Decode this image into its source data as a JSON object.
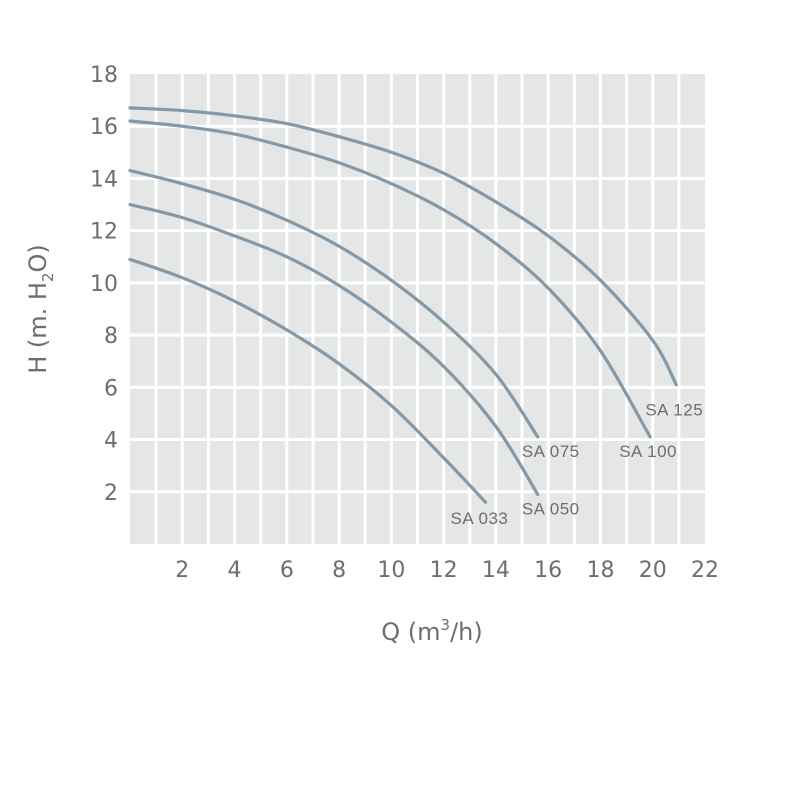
{
  "chart_data": {
    "type": "line",
    "xlabel": {
      "prefix": "Q (m",
      "sup": "3",
      "suffix": "/h)"
    },
    "ylabel": {
      "prefix": "H (m. H",
      "sub": "2",
      "suffix": "O)"
    },
    "xlim": [
      0,
      22
    ],
    "ylim": [
      0,
      18
    ],
    "xticks": [
      "2",
      "4",
      "6",
      "8",
      "10",
      "12",
      "14",
      "16",
      "18",
      "20",
      "22"
    ],
    "yticks": [
      "2",
      "4",
      "6",
      "8",
      "10",
      "12",
      "14",
      "16",
      "18"
    ],
    "grid": true,
    "colors": {
      "plot_bg": "#e5e6e6",
      "grid": "#ffffff",
      "curve": "#8499a8",
      "text": "#6d6e70"
    },
    "series": [
      {
        "name": "SA 033",
        "x": [
          0,
          2,
          4,
          6,
          8,
          10,
          12,
          13.6
        ],
        "y": [
          10.9,
          10.2,
          9.3,
          8.2,
          6.9,
          5.3,
          3.3,
          1.6
        ]
      },
      {
        "name": "SA 050",
        "x": [
          0,
          2,
          4,
          6,
          8,
          10,
          12,
          14,
          15.6
        ],
        "y": [
          13.0,
          12.5,
          11.8,
          11.0,
          9.9,
          8.5,
          6.8,
          4.5,
          1.9
        ]
      },
      {
        "name": "SA 075",
        "x": [
          0,
          2,
          4,
          6,
          8,
          10,
          12,
          14,
          15.6
        ],
        "y": [
          14.3,
          13.8,
          13.2,
          12.4,
          11.4,
          10.1,
          8.5,
          6.5,
          4.1
        ]
      },
      {
        "name": "SA 100",
        "x": [
          0,
          2,
          4,
          6,
          8,
          10,
          12,
          14,
          16,
          18,
          19.9
        ],
        "y": [
          16.2,
          16.0,
          15.7,
          15.2,
          14.6,
          13.8,
          12.8,
          11.5,
          9.8,
          7.4,
          4.1
        ]
      },
      {
        "name": "SA 125",
        "x": [
          0,
          2,
          4,
          6,
          8,
          10,
          12,
          14,
          16,
          18,
          20,
          20.9
        ],
        "y": [
          16.7,
          16.6,
          16.4,
          16.1,
          15.6,
          15.0,
          14.2,
          13.1,
          11.8,
          10.1,
          7.8,
          6.1
        ]
      }
    ]
  }
}
